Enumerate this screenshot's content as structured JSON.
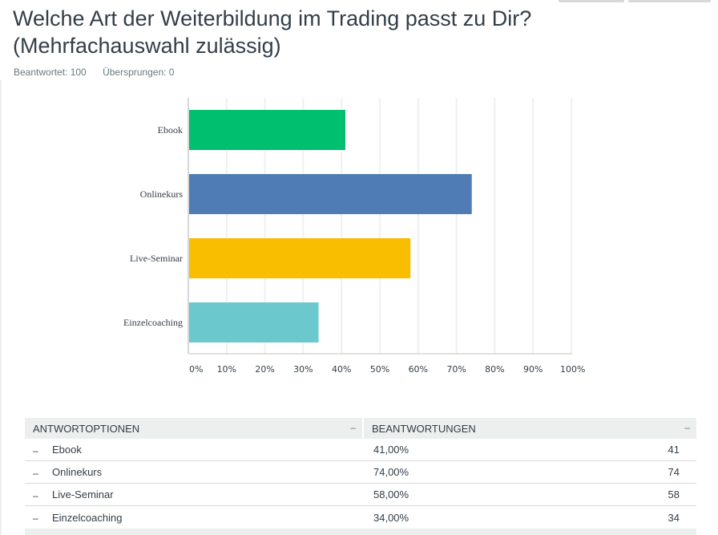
{
  "header": {
    "title": "Welche Art der Weiterbildung im Trading passt zu Dir? (Mehrfachauswahl zulässig)",
    "answered": "Beantwortet: 100",
    "skipped": "Übersprungen: 0"
  },
  "chart_data": {
    "type": "bar",
    "orientation": "horizontal",
    "title": "",
    "xlabel": "",
    "ylabel": "",
    "categories": [
      "Ebook",
      "Onlinekurs",
      "Live-Seminar",
      "Einzelcoaching"
    ],
    "values": [
      41,
      74,
      58,
      34
    ],
    "unit": "%",
    "colors": [
      "#00bf6f",
      "#507cb6",
      "#f9be00",
      "#6bc8cd"
    ],
    "xlim": [
      0,
      100
    ],
    "ticks": [
      "0%",
      "10%",
      "20%",
      "30%",
      "40%",
      "50%",
      "60%",
      "70%",
      "80%",
      "90%",
      "100%"
    ],
    "tick_values": [
      0,
      10,
      20,
      30,
      40,
      50,
      60,
      70,
      80,
      90,
      100
    ],
    "grid": true,
    "legend": "none"
  },
  "table": {
    "col1_header": "ANTWORTOPTIONEN",
    "col2_header": "BEANTWORTUNGEN",
    "sort_glyph": "–",
    "row_glyph": "–",
    "rows": [
      {
        "option": "Ebook",
        "percent": "41,00%",
        "count": "41"
      },
      {
        "option": "Onlinekurs",
        "percent": "74,00%",
        "count": "74"
      },
      {
        "option": "Live-Seminar",
        "percent": "58,00%",
        "count": "58"
      },
      {
        "option": "Einzelcoaching",
        "percent": "34,00%",
        "count": "34"
      }
    ]
  }
}
